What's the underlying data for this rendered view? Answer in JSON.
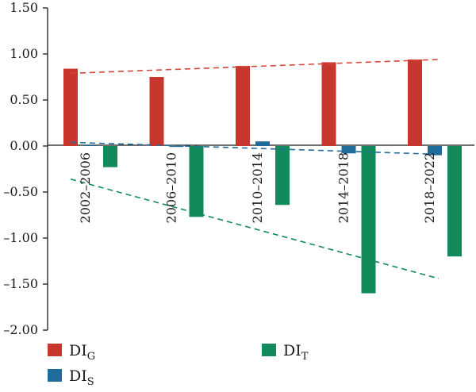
{
  "chart_data": {
    "type": "bar",
    "categories": [
      "2002–2006",
      "2006–2010",
      "2010–2014",
      "2014–2018",
      "2018–2022"
    ],
    "series": [
      {
        "name": "DI_G",
        "label_main": "DI",
        "label_sub": "G",
        "color": "#c8372d",
        "values": [
          0.84,
          0.75,
          0.87,
          0.91,
          0.94
        ]
      },
      {
        "name": "DI_S",
        "label_main": "DI",
        "label_sub": "S",
        "color": "#1f6b9a",
        "values": [
          0.01,
          -0.01,
          0.05,
          -0.08,
          -0.1
        ]
      },
      {
        "name": "DI_T",
        "label_main": "DI",
        "label_sub": "T",
        "color": "#138a5c",
        "values": [
          -0.23,
          -0.77,
          -0.64,
          -1.6,
          -1.2
        ]
      }
    ],
    "trendlines": [
      {
        "series": "DI_G",
        "color": "#d8463a",
        "start": [
          0,
          0.79
        ],
        "end": [
          4,
          0.94
        ]
      },
      {
        "series": "DI_S",
        "color": "#1f6b9a",
        "start": [
          0,
          0.04
        ],
        "end": [
          4,
          -0.09
        ]
      },
      {
        "series": "DI_T",
        "color": "#138a5c",
        "start": [
          0,
          -0.36
        ],
        "end": [
          4,
          -1.44
        ]
      }
    ],
    "yticks": [
      "1.50",
      "1.00",
      "0.50",
      "0.00",
      "–0.50",
      "–1.00",
      "–1.50",
      "–2.00"
    ],
    "ytick_values": [
      1.5,
      1.0,
      0.5,
      0.0,
      -0.5,
      -1.0,
      -1.5,
      -2.0
    ],
    "ylim": [
      -2.0,
      1.5
    ],
    "grid": false,
    "legend_position": "bottom"
  }
}
